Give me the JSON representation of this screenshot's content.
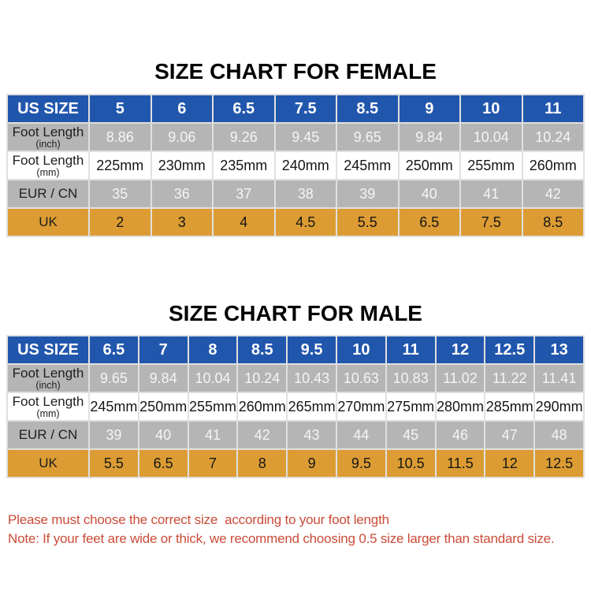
{
  "colors": {
    "header_blue": "#2156ad",
    "row_gray": "#b5b5b5",
    "row_orange": "#dc9c33",
    "note_red": "#cb4b38",
    "title_black": "#000000"
  },
  "female": {
    "title": "SIZE CHART FOR FEMALE",
    "header_label": "US SIZE",
    "us_sizes": [
      "5",
      "6",
      "6.5",
      "7.5",
      "8.5",
      "9",
      "10",
      "11"
    ],
    "rows": [
      {
        "label": "Foot Length",
        "sublabel": "(inch)",
        "style": "gray",
        "values": [
          "8.86",
          "9.06",
          "9.26",
          "9.45",
          "9.65",
          "9.84",
          "10.04",
          "10.24"
        ]
      },
      {
        "label": "Foot Length",
        "sublabel": "(mm)",
        "style": "white",
        "values": [
          "225mm",
          "230mm",
          "235mm",
          "240mm",
          "245mm",
          "250mm",
          "255mm",
          "260mm"
        ]
      },
      {
        "label": "EUR / CN",
        "sublabel": "",
        "style": "gray",
        "values": [
          "35",
          "36",
          "37",
          "38",
          "39",
          "40",
          "41",
          "42"
        ]
      },
      {
        "label": "UK",
        "sublabel": "",
        "style": "orange",
        "values": [
          "2",
          "3",
          "4",
          "4.5",
          "5.5",
          "6.5",
          "7.5",
          "8.5"
        ]
      }
    ]
  },
  "male": {
    "title": "SIZE CHART FOR MALE",
    "header_label": "US SIZE",
    "us_sizes": [
      "6.5",
      "7",
      "8",
      "8.5",
      "9.5",
      "10",
      "11",
      "12",
      "12.5",
      "13"
    ],
    "rows": [
      {
        "label": "Foot Length",
        "sublabel": "(inch)",
        "style": "gray",
        "values": [
          "9.65",
          "9.84",
          "10.04",
          "10.24",
          "10.43",
          "10.63",
          "10.83",
          "11.02",
          "11.22",
          "11.41"
        ]
      },
      {
        "label": "Foot Length",
        "sublabel": "(mm)",
        "style": "white",
        "values": [
          "245mm",
          "250mm",
          "255mm",
          "260mm",
          "265mm",
          "270mm",
          "275mm",
          "280mm",
          "285mm",
          "290mm"
        ]
      },
      {
        "label": "EUR / CN",
        "sublabel": "",
        "style": "gray",
        "values": [
          "39",
          "40",
          "41",
          "42",
          "43",
          "44",
          "45",
          "46",
          "47",
          "48"
        ]
      },
      {
        "label": "UK",
        "sublabel": "",
        "style": "orange",
        "values": [
          "5.5",
          "6.5",
          "7",
          "8",
          "9",
          "9.5",
          "10.5",
          "11.5",
          "12",
          "12.5"
        ]
      }
    ]
  },
  "notes": {
    "line1": "Please must choose the correct size  according to your foot length",
    "line2": "Note: If your feet are wide or thick, we recommend choosing 0.5 size larger than standard size."
  }
}
